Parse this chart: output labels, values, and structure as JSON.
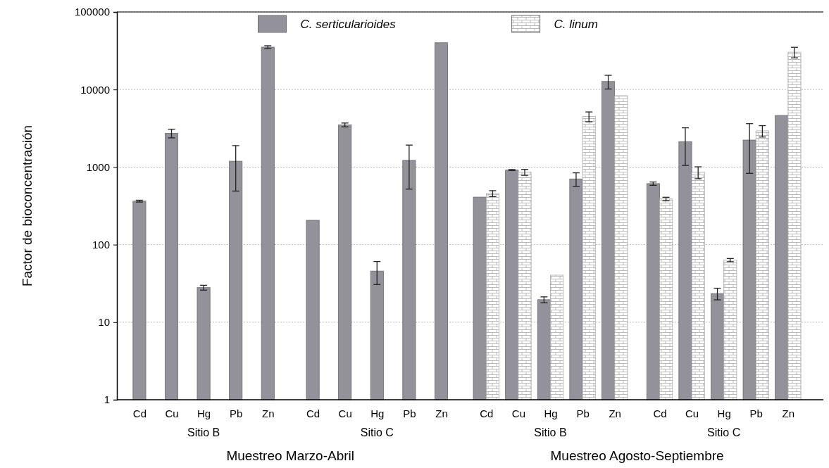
{
  "chart_data": {
    "type": "bar",
    "ylabel": "Factor de bioconcentración",
    "categories": [
      "Cd",
      "Cu",
      "Hg",
      "Pb",
      "Zn",
      "Cd",
      "Cu",
      "Hg",
      "Pb",
      "Zn",
      "Cd",
      "Cu",
      "Hg",
      "Pb",
      "Zn",
      "Cd",
      "Cu",
      "Hg",
      "Pb",
      "Zn"
    ],
    "series": [
      {
        "name": "C. serticularioides",
        "color": "#939199",
        "values": [
          364,
          2730,
          27.9,
          1190,
          35200,
          206,
          3500,
          45.6,
          1220,
          40100,
          410,
          915,
          19.5,
          703,
          12700,
          612,
          2130,
          23.4,
          2230,
          4630
        ],
        "errors": [
          10,
          350,
          2,
          700,
          1500,
          null,
          200,
          15,
          700,
          null,
          null,
          15,
          1.7,
          140,
          2550,
          30,
          1080,
          4,
          1400,
          null
        ]
      },
      {
        "name": "C. linum",
        "color": "#a8a8a8",
        "values": [
          null,
          null,
          null,
          null,
          null,
          null,
          null,
          null,
          null,
          null,
          456,
          858,
          40.4,
          4490,
          8320,
          388,
          858,
          63.2,
          2930,
          30300
        ],
        "errors": [
          null,
          null,
          null,
          null,
          null,
          null,
          null,
          null,
          null,
          null,
          40,
          75,
          null,
          650,
          null,
          20,
          150,
          3,
          490,
          4700
        ]
      }
    ],
    "log": true,
    "ylim": [
      1,
      100000
    ],
    "yticks": [
      1,
      10,
      100,
      1000,
      10000,
      100000
    ],
    "grid": "y",
    "legend": "top",
    "annotations": [
      "Sitio B",
      "Sitio C",
      "Sitio B",
      "Sitio C",
      "Muestreo Marzo-Abril",
      "Muestreo Agosto-Septiembre"
    ]
  }
}
